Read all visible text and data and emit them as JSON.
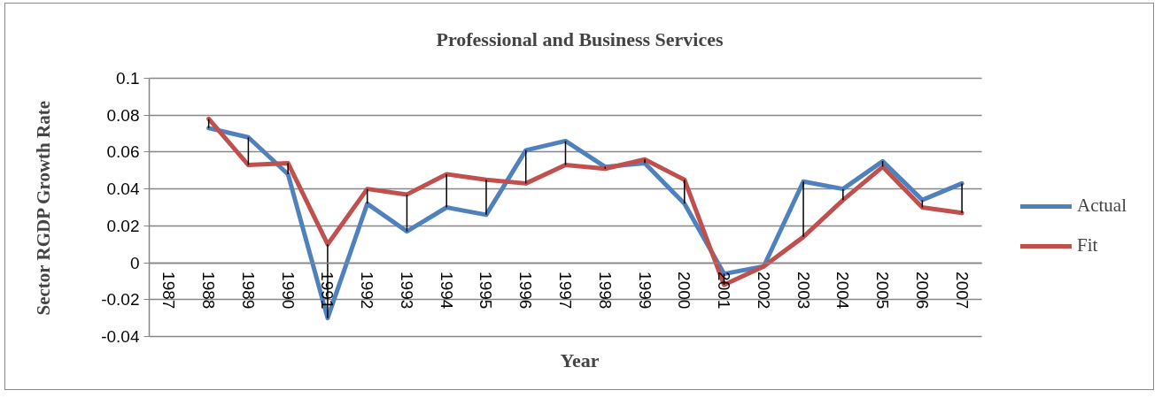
{
  "chart_data": {
    "type": "line",
    "title": "Professional and Business Services",
    "xlabel": "Year",
    "ylabel": "Sector RGDP Growth Rate",
    "categories": [
      "1987",
      "1988",
      "1989",
      "1990",
      "1991",
      "1992",
      "1993",
      "1994",
      "1995",
      "1996",
      "1997",
      "1998",
      "1999",
      "2000",
      "2001",
      "2002",
      "2003",
      "2004",
      "2005",
      "2006",
      "2007"
    ],
    "series": [
      {
        "name": "Actual",
        "color": "#4f81bd",
        "values": [
          null,
          0.073,
          0.068,
          0.048,
          -0.03,
          0.032,
          0.017,
          0.03,
          0.026,
          0.061,
          0.066,
          0.052,
          0.054,
          0.032,
          -0.006,
          -0.002,
          0.044,
          0.04,
          0.055,
          0.034,
          0.043
        ]
      },
      {
        "name": "Fit",
        "color": "#c0504d",
        "values": [
          null,
          0.078,
          0.053,
          0.054,
          0.01,
          0.04,
          0.037,
          0.048,
          0.045,
          0.043,
          0.053,
          0.051,
          0.056,
          0.045,
          -0.012,
          -0.002,
          0.014,
          0.034,
          0.052,
          0.03,
          0.027
        ],
        "errors": [
          null,
          [
            0.073,
            0.078
          ],
          [
            0.053,
            0.068
          ],
          [
            0.048,
            0.054
          ],
          [
            -0.03,
            0.01
          ],
          [
            0.032,
            0.04
          ],
          [
            0.017,
            0.037
          ],
          [
            0.03,
            0.048
          ],
          [
            0.026,
            0.045
          ],
          [
            0.043,
            0.061
          ],
          [
            0.053,
            0.066
          ],
          [
            0.051,
            0.052
          ],
          [
            0.054,
            0.056
          ],
          [
            0.032,
            0.045
          ],
          [
            -0.012,
            -0.006
          ],
          [
            -0.002,
            -0.002
          ],
          [
            0.014,
            0.044
          ],
          [
            0.034,
            0.04
          ],
          [
            0.052,
            0.055
          ],
          [
            0.03,
            0.034
          ],
          [
            0.027,
            0.043
          ]
        ]
      }
    ],
    "ylim": [
      -0.04,
      0.1
    ],
    "yticks": [
      -0.04,
      -0.02,
      0,
      0.02,
      0.04,
      0.06,
      0.08,
      0.1
    ],
    "grid": "y",
    "legend": "right",
    "line_style": "solid"
  }
}
